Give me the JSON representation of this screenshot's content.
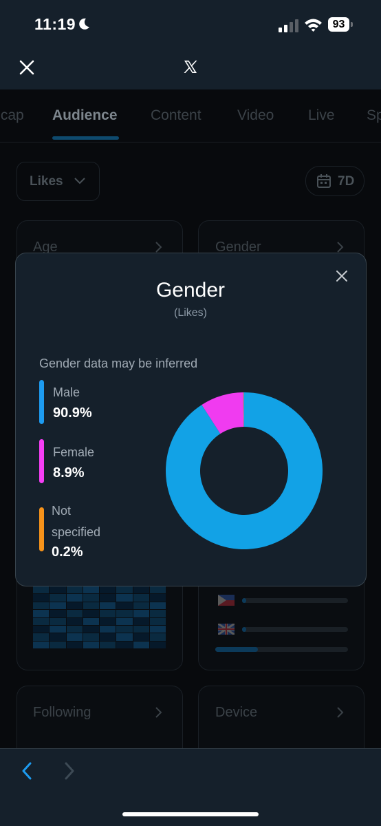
{
  "status_bar": {
    "time": "11:19",
    "battery": "93"
  },
  "header": {
    "logo_text": "X"
  },
  "tabs": [
    {
      "label": "Recap",
      "active": false
    },
    {
      "label": "Audience",
      "active": true
    },
    {
      "label": "Content",
      "active": false
    },
    {
      "label": "Video",
      "active": false
    },
    {
      "label": "Live",
      "active": false
    },
    {
      "label": "Sp",
      "active": false
    }
  ],
  "filters": {
    "metric_label": "Likes",
    "range_label": "7D"
  },
  "cards": {
    "age_title": "Age",
    "gender_title": "Gender",
    "following_title": "Following",
    "device_title": "Device"
  },
  "modal": {
    "title": "Gender",
    "subtitle": "(Likes)",
    "note": "Gender data may be inferred",
    "legend": [
      {
        "name": "Male",
        "value": "90.9%",
        "color": "#1d9bf0"
      },
      {
        "name": "Female",
        "value": "8.9%",
        "color": "#f53ef5"
      },
      {
        "name_line1": "Not",
        "name_line2": "specified",
        "value": "0.2%",
        "color": "#f7931a"
      }
    ]
  },
  "chart_data": {
    "type": "pie",
    "title": "Gender",
    "subtitle": "(Likes)",
    "donut": true,
    "categories": [
      "Male",
      "Female",
      "Not specified"
    ],
    "values": [
      90.9,
      8.9,
      0.2
    ],
    "colors": [
      "#12a2e6",
      "#f03bf0",
      "#8b8f96"
    ],
    "legend_position": "left"
  },
  "colors": {
    "accent": "#1d9bf0",
    "modal_bg": "#15202b"
  }
}
